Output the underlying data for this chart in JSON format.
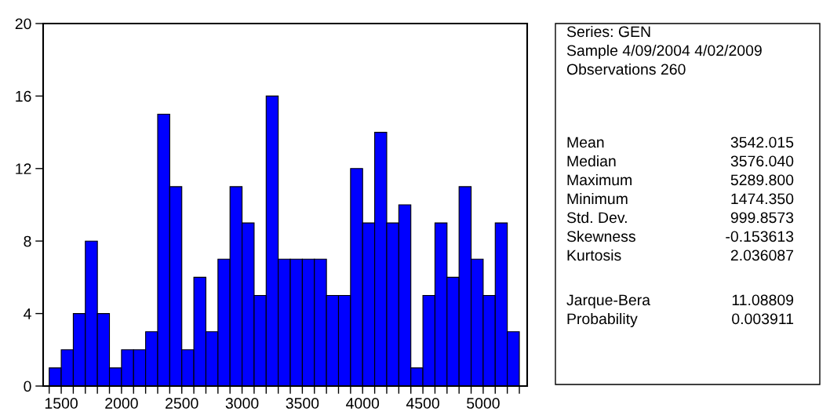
{
  "chart_data": {
    "type": "histogram",
    "bins": [
      1400,
      1500,
      1600,
      1700,
      1800,
      1900,
      2000,
      2100,
      2200,
      2300,
      2400,
      2500,
      2600,
      2700,
      2800,
      2900,
      3000,
      3100,
      3200,
      3300,
      3400,
      3500,
      3600,
      3700,
      3800,
      3900,
      4000,
      4100,
      4200,
      4300,
      4400,
      4500,
      4600,
      4700,
      4800,
      4900,
      5000,
      5100,
      5200,
      5300
    ],
    "values": [
      1,
      2,
      4,
      8,
      4,
      1,
      2,
      2,
      3,
      15,
      11,
      2,
      6,
      3,
      7,
      11,
      9,
      5,
      16,
      7,
      7,
      7,
      7,
      5,
      5,
      12,
      9,
      14,
      9,
      10,
      1,
      5,
      9,
      6,
      11,
      7,
      5,
      9,
      3
    ],
    "color": "#0000ff",
    "xlim": [
      1350,
      5365
    ],
    "xticks": [
      {
        "value": 1400,
        "label": null
      },
      1500,
      {
        "value": 1600,
        "label": null
      },
      {
        "value": 1700,
        "label": null
      },
      {
        "value": 1800,
        "label": null
      },
      {
        "value": 1900,
        "label": null
      },
      2000,
      {
        "value": 2100,
        "label": null
      },
      {
        "value": 2200,
        "label": null
      },
      {
        "value": 2300,
        "label": null
      },
      {
        "value": 2400,
        "label": null
      },
      2500,
      {
        "value": 2600,
        "label": null
      },
      {
        "value": 2700,
        "label": null
      },
      {
        "value": 2800,
        "label": null
      },
      {
        "value": 2900,
        "label": null
      },
      3000,
      {
        "value": 3100,
        "label": null
      },
      {
        "value": 3200,
        "label": null
      },
      {
        "value": 3300,
        "label": null
      },
      {
        "value": 3400,
        "label": null
      },
      3500,
      {
        "value": 3600,
        "label": null
      },
      {
        "value": 3700,
        "label": null
      },
      {
        "value": 3800,
        "label": null
      },
      {
        "value": 3900,
        "label": null
      },
      4000,
      {
        "value": 4100,
        "label": null
      },
      {
        "value": 4200,
        "label": null
      },
      {
        "value": 4300,
        "label": null
      },
      {
        "value": 4400,
        "label": null
      },
      4500,
      {
        "value": 4600,
        "label": null
      },
      {
        "value": 4700,
        "label": null
      },
      {
        "value": 4800,
        "label": null
      },
      {
        "value": 4900,
        "label": null
      },
      5000,
      {
        "value": 5100,
        "label": null
      },
      {
        "value": 5200,
        "label": null
      },
      {
        "value": 5300,
        "label": null
      }
    ],
    "ylim": [
      0,
      20
    ],
    "yticks": [
      0,
      4,
      8,
      12,
      16,
      20
    ],
    "grid": false,
    "annotations": [
      "Series: GEN",
      "Sample 4/09/2004 4/02/2009",
      "Observations 260",
      "Mean\t3542.015",
      "Median\t3576.040",
      "Maximum\t5289.800",
      "Minimum\t1474.350",
      "Std. Dev.\t999.8573",
      "Skewness\t-0.153613",
      "Kurtosis\t2.036087",
      "Jarque-Bera\t11.08809",
      "Probability\t0.003911"
    ]
  }
}
